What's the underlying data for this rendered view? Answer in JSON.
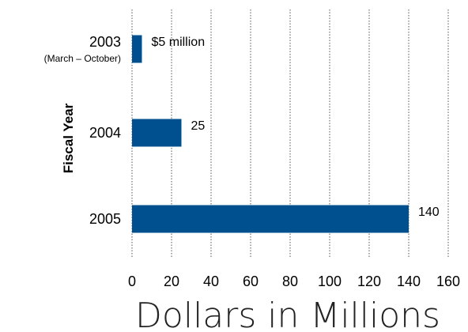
{
  "chart_data": {
    "type": "bar",
    "orientation": "horizontal",
    "categories": [
      "2003",
      "2004",
      "2005"
    ],
    "category_sublabels": [
      "(March – October)",
      "",
      ""
    ],
    "values": [
      5,
      25,
      140
    ],
    "data_labels": [
      "$5 million",
      "25",
      "140"
    ],
    "xlabel": "Dollars in Millions",
    "ylabel": "Fiscal Year",
    "xlim": [
      0,
      160
    ],
    "xticks": [
      "0",
      "20",
      "40",
      "60",
      "80",
      "100",
      "120",
      "140",
      "160"
    ],
    "grid": "vertical dotted",
    "bar_color": "#00508f"
  }
}
